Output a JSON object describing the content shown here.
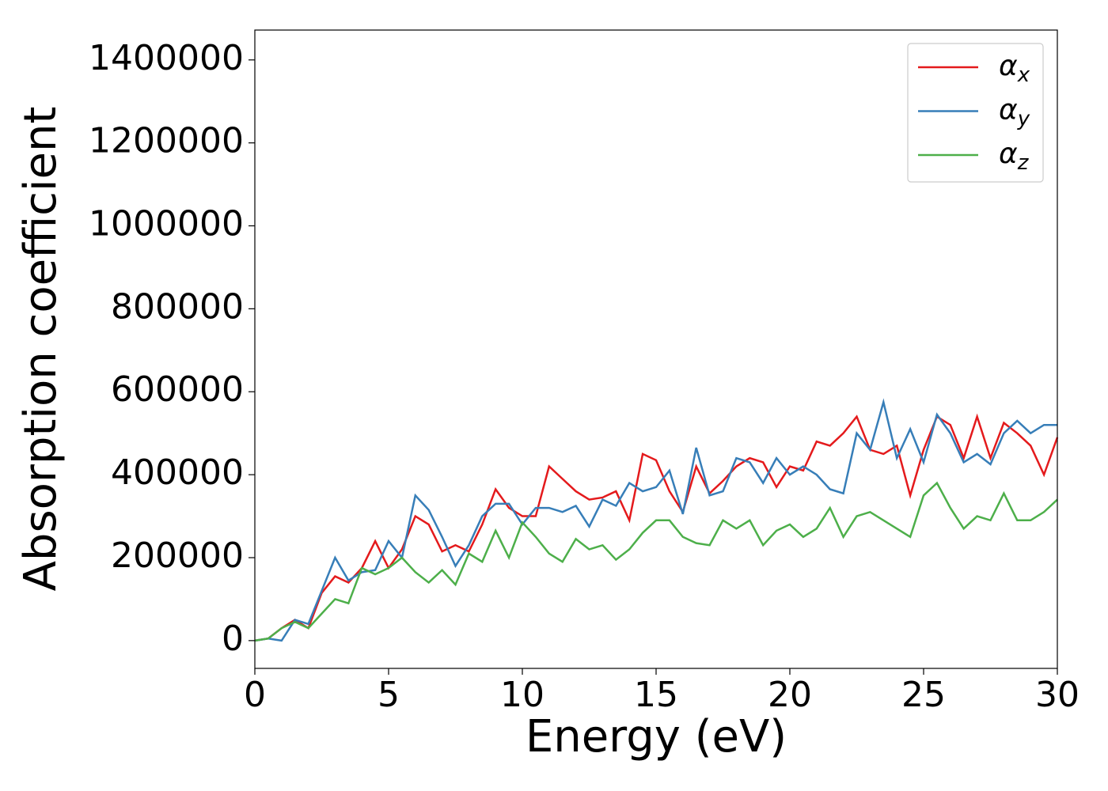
{
  "chart_data": {
    "type": "line",
    "xlabel": "Energy (eV)",
    "ylabel": "Absorption coefficient",
    "x": [
      0,
      0.5,
      1,
      1.5,
      2,
      2.5,
      3,
      3.5,
      4,
      4.5,
      5,
      5.5,
      6,
      6.5,
      7,
      7.5,
      8,
      8.5,
      9,
      9.5,
      10,
      10.5,
      11,
      11.5,
      12,
      12.5,
      13,
      13.5,
      14,
      14.5,
      15,
      15.5,
      16,
      16.5,
      17,
      17.5,
      18,
      18.5,
      19,
      19.5,
      20,
      20.5,
      21,
      21.5,
      22,
      22.5,
      23,
      23.5,
      24,
      24.5,
      25,
      25.5,
      26,
      26.5,
      27,
      27.5,
      28,
      28.5,
      29,
      29.5,
      30
    ],
    "series": [
      {
        "name": "αx",
        "color": "#e41a1c",
        "values": [
          0,
          5000,
          30000,
          50000,
          30000,
          115000,
          155000,
          140000,
          175000,
          240000,
          175000,
          220000,
          300000,
          280000,
          215000,
          230000,
          215000,
          280000,
          365000,
          320000,
          300000,
          300000,
          420000,
          390000,
          360000,
          340000,
          345000,
          360000,
          290000,
          450000,
          435000,
          360000,
          310000,
          420000,
          355000,
          385000,
          420000,
          440000,
          430000,
          370000,
          420000,
          410000,
          480000,
          470000,
          500000,
          540000,
          460000,
          450000,
          470000,
          350000,
          460000,
          540000,
          520000,
          440000,
          540000,
          440000,
          525000,
          500000,
          470000,
          400000,
          490000
        ]
      },
      {
        "name": "αy",
        "color": "#377eb8",
        "values": [
          0,
          5000,
          0,
          50000,
          40000,
          120000,
          200000,
          145000,
          165000,
          170000,
          240000,
          200000,
          350000,
          315000,
          250000,
          180000,
          230000,
          300000,
          330000,
          330000,
          280000,
          320000,
          320000,
          310000,
          325000,
          275000,
          340000,
          325000,
          380000,
          360000,
          370000,
          410000,
          305000,
          465000,
          350000,
          360000,
          440000,
          430000,
          380000,
          440000,
          400000,
          420000,
          400000,
          365000,
          355000,
          500000,
          460000,
          575000,
          440000,
          510000,
          430000,
          545000,
          500000,
          430000,
          450000,
          425000,
          500000,
          530000,
          500000,
          520000,
          520000
        ]
      },
      {
        "name": "αz",
        "color": "#4daf4a",
        "values": [
          0,
          5000,
          30000,
          45000,
          30000,
          65000,
          100000,
          90000,
          175000,
          160000,
          175000,
          200000,
          165000,
          140000,
          170000,
          135000,
          210000,
          190000,
          265000,
          200000,
          285000,
          250000,
          210000,
          190000,
          245000,
          220000,
          230000,
          195000,
          220000,
          260000,
          290000,
          290000,
          250000,
          235000,
          230000,
          290000,
          270000,
          290000,
          230000,
          265000,
          280000,
          250000,
          270000,
          320000,
          250000,
          300000,
          310000,
          290000,
          270000,
          250000,
          350000,
          380000,
          320000,
          270000,
          300000,
          290000,
          355000,
          290000,
          290000,
          310000,
          340000
        ]
      }
    ],
    "xlim": [
      0,
      30
    ],
    "xticks": [
      0,
      5,
      10,
      15,
      20,
      25,
      30
    ],
    "ylim": [
      -67000,
      1472000
    ],
    "yticks": [
      0,
      200000,
      400000,
      600000,
      800000,
      1000000,
      1200000,
      1400000
    ],
    "legend": "upper right"
  }
}
